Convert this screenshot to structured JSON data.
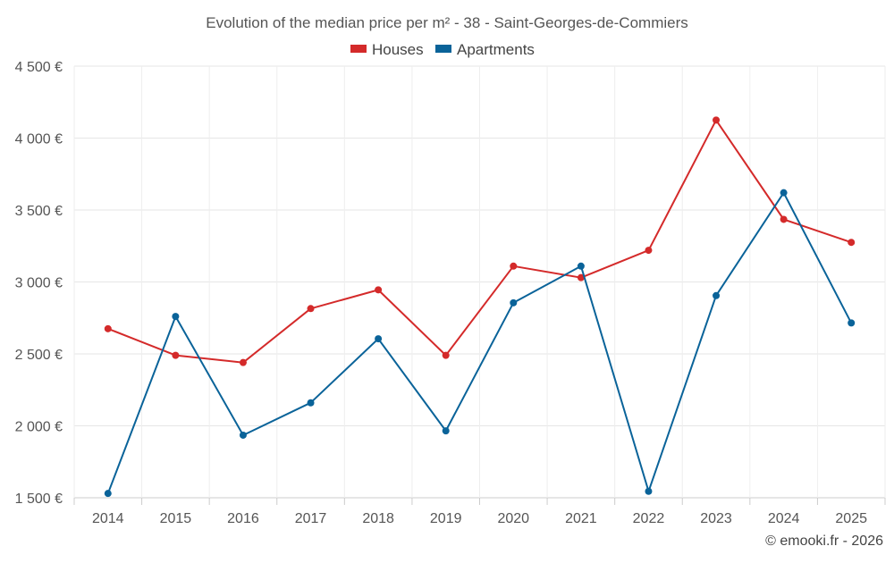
{
  "chart_data": {
    "type": "line",
    "title": "Evolution of the median price per m² - 38 - Saint-Georges-de-Commiers",
    "xlabel": "",
    "ylabel": "",
    "categories": [
      "2014",
      "2015",
      "2016",
      "2017",
      "2018",
      "2019",
      "2020",
      "2021",
      "2022",
      "2023",
      "2024",
      "2025"
    ],
    "ylim": [
      1500,
      4500
    ],
    "yticks": [
      1500,
      2000,
      2500,
      3000,
      3500,
      4000,
      4500
    ],
    "ytick_labels": [
      "1 500 €",
      "2 000 €",
      "2 500 €",
      "3 000 €",
      "3 500 €",
      "4 000 €",
      "4 500 €"
    ],
    "grid": true,
    "legend_position": "top-center",
    "series": [
      {
        "name": "Houses",
        "color": "#d42a2a",
        "values": [
          2675,
          2490,
          2440,
          2815,
          2945,
          2490,
          3110,
          3030,
          3220,
          4125,
          3435,
          3275
        ]
      },
      {
        "name": "Apartments",
        "color": "#0a6399",
        "values": [
          1530,
          2760,
          1935,
          2160,
          2605,
          1965,
          2855,
          3110,
          1545,
          2905,
          3620,
          2715
        ]
      }
    ],
    "credit": "© emooki.fr - 2026"
  }
}
